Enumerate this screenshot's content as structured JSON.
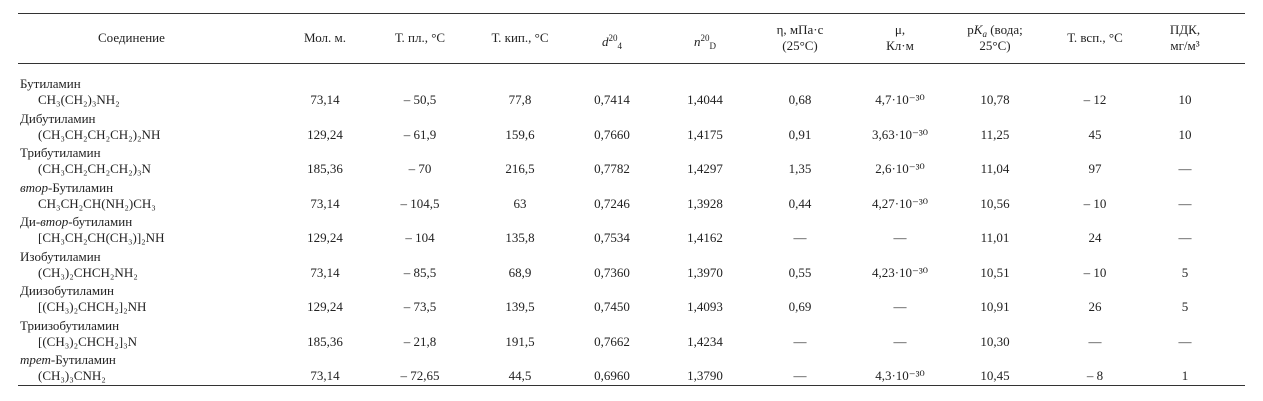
{
  "table": {
    "header": [
      [
        [
          {
            "text": "Соединение"
          }
        ]
      ],
      [
        [
          {
            "text": "Мол. м."
          }
        ]
      ],
      [
        [
          {
            "text": "Т. пл., °С"
          }
        ]
      ],
      [
        [
          {
            "text": "Т. кип., °С"
          }
        ]
      ],
      [
        [
          {
            "text": "d",
            "italic": true
          },
          {
            "text": "20",
            "pos": "sup"
          },
          {
            "text": "4",
            "pos": "sub"
          }
        ]
      ],
      [
        [
          {
            "text": "n",
            "italic": true
          },
          {
            "text": "20",
            "pos": "sup"
          },
          {
            "text": "D",
            "pos": "sub"
          }
        ]
      ],
      [
        [
          {
            "text": "η, мПа·с"
          }
        ],
        [
          {
            "text": "(25°С)"
          }
        ]
      ],
      [
        [
          {
            "text": "μ,"
          }
        ],
        [
          {
            "text": "Кл·м"
          }
        ]
      ],
      [
        [
          {
            "text": "p"
          },
          {
            "text": "K",
            "italic": true
          },
          {
            "text": "a",
            "pos": "sub",
            "italic": true
          },
          {
            "text": " (вода;"
          }
        ],
        [
          {
            "text": "25°С)"
          }
        ]
      ],
      [
        [
          {
            "text": "Т. всп., °С"
          }
        ]
      ],
      [
        [
          {
            "text": "ПДК,"
          }
        ],
        [
          {
            "text": "мг/м³"
          }
        ]
      ]
    ],
    "rows": [
      {
        "name": [
          {
            "text": "Бутиламин"
          }
        ],
        "formula": "CH₃(CH₂)₃NH₂",
        "cells": [
          "73,14",
          "– 50,5",
          "77,8",
          "0,7414",
          "1,4044",
          "0,68",
          "4,7·10⁻³⁰",
          "10,78",
          "– 12",
          "10"
        ]
      },
      {
        "name": [
          {
            "text": "Дибутиламин"
          }
        ],
        "formula": "(CH₃CH₂CH₂CH₂)₂NH",
        "cells": [
          "129,24",
          "– 61,9",
          "159,6",
          "0,7660",
          "1,4175",
          "0,91",
          "3,63·10⁻³⁰",
          "11,25",
          "45",
          "10"
        ]
      },
      {
        "name": [
          {
            "text": "Трибутиламин"
          }
        ],
        "formula": "(CH₃CH₂CH₂CH₂)₃N",
        "cells": [
          "185,36",
          "– 70",
          "216,5",
          "0,7782",
          "1,4297",
          "1,35",
          "2,6·10⁻³⁰",
          "11,04",
          "97",
          "—"
        ]
      },
      {
        "name": [
          {
            "text": "втор",
            "italic": true
          },
          {
            "text": "-Бутиламин"
          }
        ],
        "formula": "CH₃CH₂CH(NH₂)CH₃",
        "cells": [
          "73,14",
          "– 104,5",
          "63",
          "0,7246",
          "1,3928",
          "0,44",
          "4,27·10⁻³⁰",
          "10,56",
          "– 10",
          "—"
        ]
      },
      {
        "name": [
          {
            "text": "Ди-"
          },
          {
            "text": "втор",
            "italic": true
          },
          {
            "text": "-бутиламин"
          }
        ],
        "formula": "[CH₃CH₂CH(CH₃)]₂NH",
        "cells": [
          "129,24",
          "– 104",
          "135,8",
          "0,7534",
          "1,4162",
          "—",
          "—",
          "11,01",
          "24",
          "—"
        ]
      },
      {
        "name": [
          {
            "text": "Изобутиламин"
          }
        ],
        "formula": "(CH₃)₂CHCH₂NH₂",
        "cells": [
          "73,14",
          "– 85,5",
          "68,9",
          "0,7360",
          "1,3970",
          "0,55",
          "4,23·10⁻³⁰",
          "10,51",
          "– 10",
          "5"
        ]
      },
      {
        "name": [
          {
            "text": "Диизобутиламин"
          }
        ],
        "formula": "[(CH₃)₂CHCH₂]₂NH",
        "cells": [
          "129,24",
          "– 73,5",
          "139,5",
          "0,7450",
          "1,4093",
          "0,69",
          "—",
          "10,91",
          "26",
          "5"
        ]
      },
      {
        "name": [
          {
            "text": "Триизобутиламин"
          }
        ],
        "formula": "[(CH₃)₂CHCH₂]₃N",
        "cells": [
          "185,36",
          "– 21,8",
          "191,5",
          "0,7662",
          "1,4234",
          "—",
          "—",
          "10,30",
          "—",
          "—"
        ]
      },
      {
        "name": [
          {
            "text": "трет",
            "italic": true
          },
          {
            "text": "-Бутиламин"
          }
        ],
        "formula": "(CH₃)₃CNH₂",
        "cells": [
          "73,14",
          "– 72,65",
          "44,5",
          "0,6960",
          "1,3790",
          "—",
          "4,3·10⁻³⁰",
          "10,45",
          "– 8",
          "1"
        ]
      }
    ]
  }
}
